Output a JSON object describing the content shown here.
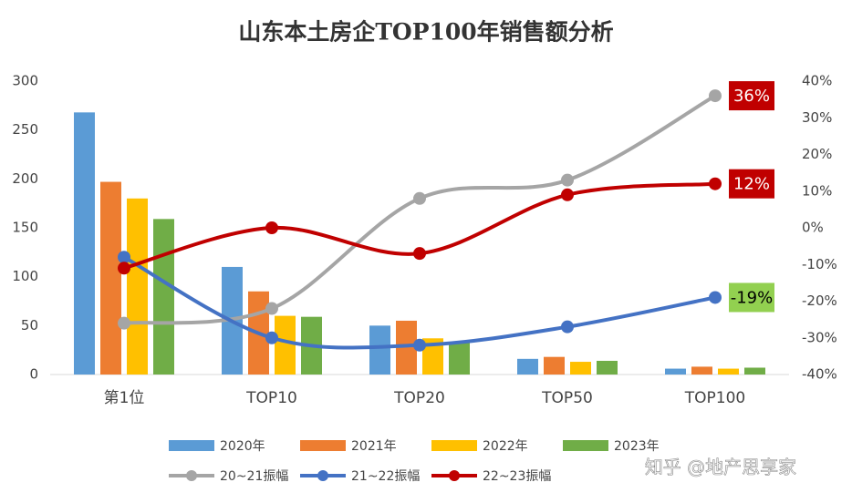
{
  "chart_data": {
    "type": "bar-line",
    "title": "山东本土房企TOP100年销售额分析",
    "categories": [
      "第1位",
      "TOP10",
      "TOP20",
      "TOP50",
      "TOP100"
    ],
    "series": [
      {
        "name": "2020年",
        "type": "bar",
        "color": "#5b9bd5",
        "values": [
          268,
          110,
          50,
          16,
          6
        ]
      },
      {
        "name": "2021年",
        "type": "bar",
        "color": "#ed7d31",
        "values": [
          197,
          85,
          55,
          18,
          8
        ]
      },
      {
        "name": "2022年",
        "type": "bar",
        "color": "#ffc000",
        "values": [
          180,
          60,
          37,
          13,
          6
        ]
      },
      {
        "name": "2023年",
        "type": "bar",
        "color": "#70ad47",
        "values": [
          159,
          59,
          33,
          14,
          7
        ]
      },
      {
        "name": "20~21振幅",
        "type": "line",
        "axis": "y2",
        "color": "#a5a5a5",
        "values": [
          -26,
          -22,
          8,
          13,
          36
        ],
        "value_labels": [
          null,
          null,
          null,
          null,
          "36%"
        ],
        "label_bg": "#c00000",
        "label_color": "#ffffff"
      },
      {
        "name": "21~22振幅",
        "type": "line",
        "axis": "y2",
        "color": "#4472c4",
        "values": [
          -8,
          -30,
          -32,
          -27,
          -19
        ],
        "value_labels": [
          null,
          null,
          null,
          null,
          "-19%"
        ],
        "label_bg": "#92d050",
        "label_color": "#000000"
      },
      {
        "name": "22~23振幅",
        "type": "line",
        "axis": "y2",
        "color": "#c00000",
        "values": [
          -11,
          0,
          -7,
          9,
          12
        ],
        "value_labels": [
          null,
          null,
          null,
          null,
          "12%"
        ],
        "label_bg": "#c00000",
        "label_color": "#ffffff"
      }
    ],
    "ylim": [
      0,
      300
    ],
    "yticks": [
      0,
      50,
      100,
      150,
      200,
      250,
      300
    ],
    "y2lim": [
      -40,
      40
    ],
    "y2ticks": [
      {
        "value": -40,
        "label": "-40%"
      },
      {
        "value": -30,
        "label": "-30%"
      },
      {
        "value": -20,
        "label": "-20%"
      },
      {
        "value": -10,
        "label": "-10%"
      },
      {
        "value": 0,
        "label": "0%"
      },
      {
        "value": 10,
        "label": "10%"
      },
      {
        "value": 20,
        "label": "20%"
      },
      {
        "value": 30,
        "label": "30%"
      },
      {
        "value": 40,
        "label": "40%"
      }
    ],
    "grid": false,
    "legend": "bottom",
    "watermark": "知乎 @地产思享家"
  }
}
